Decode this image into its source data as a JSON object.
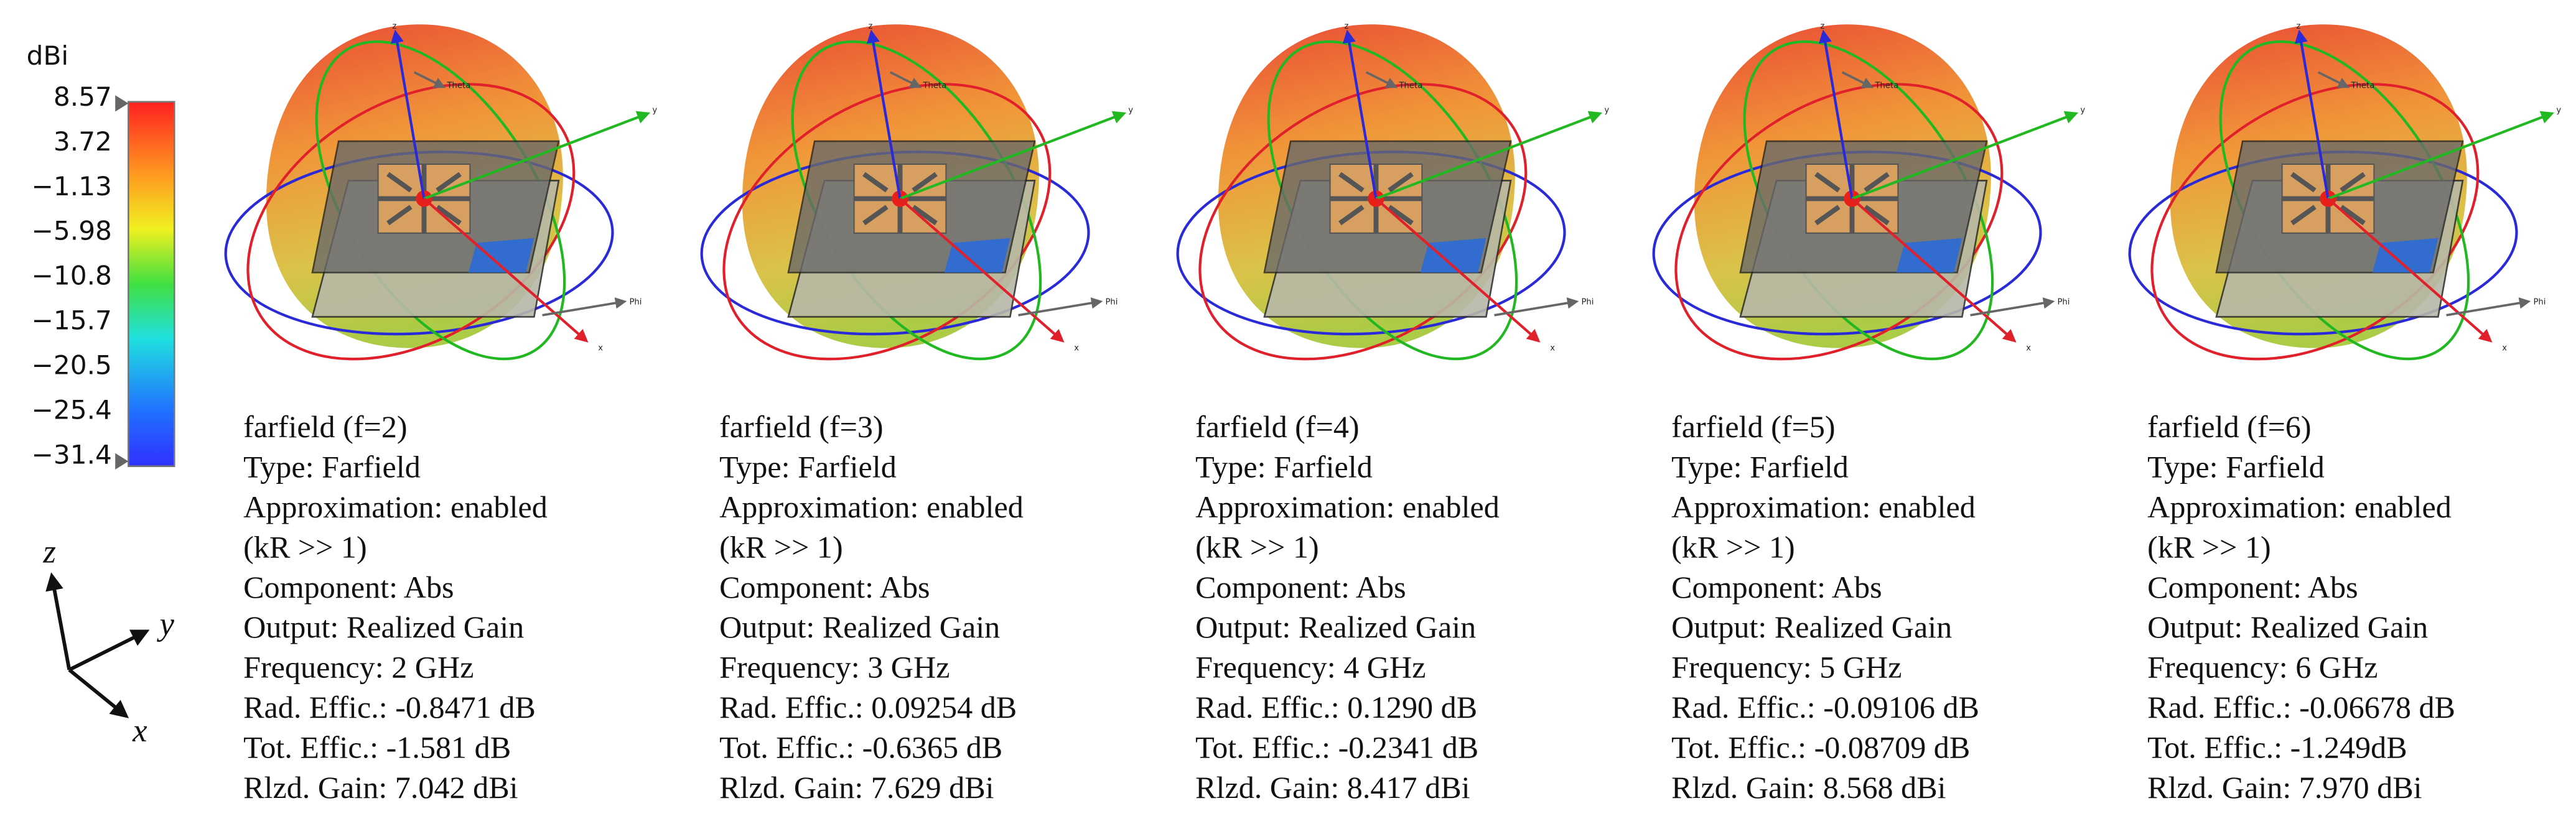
{
  "colorbar": {
    "unit": "dBi",
    "labels": [
      "8.57",
      "3.72",
      "−1.13",
      "−5.98",
      "−10.8",
      "−15.7",
      "−20.5",
      "−25.4",
      "−31.4"
    ]
  },
  "triad": {
    "z": "z",
    "y": "y",
    "x": "x"
  },
  "panels": [
    {
      "axes": {
        "z": "z",
        "y": "y",
        "x": "x",
        "theta": "Theta",
        "phi": "Phi"
      },
      "lines": [
        "farfield (f=2)",
        "Type: Farfield",
        "Approximation: enabled",
        "(kR >> 1)",
        "Component: Abs",
        "Output: Realized Gain",
        "Frequency: 2 GHz",
        "Rad. Effic.: -0.8471 dB",
        "Tot. Effic.: -1.581 dB",
        "Rlzd. Gain: 7.042 dBi"
      ]
    },
    {
      "axes": {
        "z": "z",
        "y": "y",
        "x": "x",
        "theta": "Theta",
        "phi": "Phi"
      },
      "lines": [
        "farfield (f=3)",
        "Type: Farfield",
        "Approximation: enabled",
        "(kR >> 1)",
        "Component: Abs",
        "Output: Realized Gain",
        "Frequency: 3 GHz",
        "Rad. Effic.: 0.09254 dB",
        "Tot. Effic.: -0.6365 dB",
        "Rlzd. Gain: 7.629 dBi"
      ]
    },
    {
      "axes": {
        "z": "z",
        "y": "y",
        "x": "x",
        "theta": "Theta",
        "phi": "Phi"
      },
      "lines": [
        "farfield (f=4)",
        "Type: Farfield",
        "Approximation: enabled",
        "(kR >> 1)",
        "Component: Abs",
        "Output: Realized Gain",
        "Frequency: 4 GHz",
        "Rad. Effic.: 0.1290 dB",
        "Tot. Effic.: -0.2341 dB",
        "Rlzd. Gain: 8.417 dBi"
      ]
    },
    {
      "axes": {
        "z": "z",
        "y": "y",
        "x": "x",
        "theta": "Theta",
        "phi": "Phi"
      },
      "lines": [
        "farfield (f=5)",
        "Type: Farfield",
        "Approximation: enabled",
        "(kR >> 1)",
        "Component: Abs",
        "Output: Realized Gain",
        "Frequency: 5 GHz",
        "Rad. Effic.: -0.09106 dB",
        "Tot. Effic.: -0.08709 dB",
        "Rlzd. Gain: 8.568 dBi"
      ]
    },
    {
      "axes": {
        "z": "z",
        "y": "y",
        "x": "x",
        "theta": "Theta",
        "phi": "Phi"
      },
      "lines": [
        "farfield (f=6)",
        "Type: Farfield",
        "Approximation: enabled",
        "(kR >> 1)",
        "Component: Abs",
        "Output: Realized Gain",
        "Frequency: 6 GHz",
        "Rad. Effic.: -0.06678 dB",
        "Tot. Effic.: -1.249dB",
        "Rlzd. Gain: 7.970 dBi"
      ]
    }
  ]
}
